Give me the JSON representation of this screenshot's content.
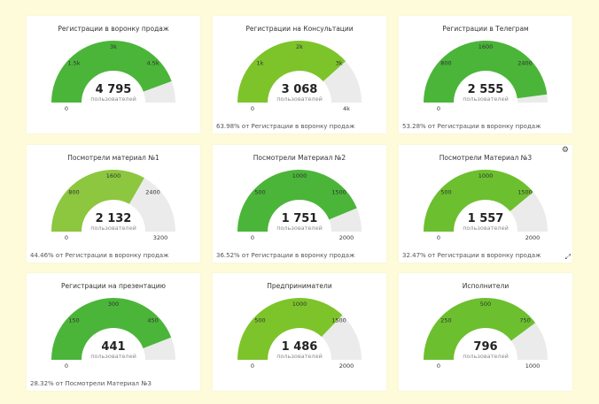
{
  "dashboard": {
    "cards": [
      {
        "title": "Регистрации в воронку продаж",
        "value": "4 795",
        "unit": "пользователей",
        "fraction": 0.888,
        "ticks": [
          "0",
          "1.5k",
          "3k",
          "4.5k"
        ],
        "max_label": "",
        "footer": "",
        "color": "#4bb53a"
      },
      {
        "title": "Регистрации на Консультации",
        "value": "3 068",
        "unit": "пользователей",
        "fraction": 0.767,
        "ticks": [
          "0",
          "1k",
          "2k",
          "3k"
        ],
        "max_label": "4k",
        "footer": "63.98% от Регистрации в воронку продаж",
        "color": "#7dc42b"
      },
      {
        "title": "Регистрации в Телеграм",
        "value": "2 555",
        "unit": "пользователей",
        "fraction": 0.958,
        "ticks": [
          "0",
          "800",
          "1600",
          "2400"
        ],
        "max_label": "",
        "footer": "53.28% от Регистрации в воронку продаж",
        "color": "#4bb53a"
      },
      {
        "title": "Посмотрели материал №1",
        "value": "2 132",
        "unit": "пользователей",
        "fraction": 0.666,
        "ticks": [
          "0",
          "800",
          "1600",
          "2400"
        ],
        "max_label": "3200",
        "footer": "44.46% от Регистрации в воронку продаж",
        "color": "#8dc63f"
      },
      {
        "title": "Посмотрели Материал №2",
        "value": "1 751",
        "unit": "пользователей",
        "fraction": 0.876,
        "ticks": [
          "0",
          "500",
          "1000",
          "1500"
        ],
        "max_label": "2000",
        "footer": "36.52% от Регистрации в воронку продаж",
        "color": "#4bb53a"
      },
      {
        "title": "Посмотрели Материал №3",
        "value": "1 557",
        "unit": "пользователей",
        "fraction": 0.779,
        "ticks": [
          "0",
          "500",
          "1000",
          "1500"
        ],
        "max_label": "2000",
        "footer": "32.47% от Регистрации в воронку продаж",
        "color": "#6cbf2e"
      },
      {
        "title": "Регистрации на презентацию",
        "value": "441",
        "unit": "пользователей",
        "fraction": 0.882,
        "ticks": [
          "0",
          "150",
          "300",
          "450"
        ],
        "max_label": "",
        "footer": "28.32% от Посмотрели Материал №3",
        "color": "#4bb53a"
      },
      {
        "title": "Предприниматели",
        "value": "1 486",
        "unit": "пользователей",
        "fraction": 0.743,
        "ticks": [
          "0",
          "500",
          "1000",
          "1500"
        ],
        "max_label": "2000",
        "footer": "",
        "color": "#7dc42b"
      },
      {
        "title": "Исполнители",
        "value": "796",
        "unit": "пользователей",
        "fraction": 0.796,
        "ticks": [
          "0",
          "250",
          "500",
          "750"
        ],
        "max_label": "1000",
        "footer": "",
        "color": "#6cbf2e"
      }
    ],
    "icons": {
      "settings": "gear-icon",
      "resize": "resize-handle-icon"
    },
    "empty_color": "#ebebeb"
  }
}
